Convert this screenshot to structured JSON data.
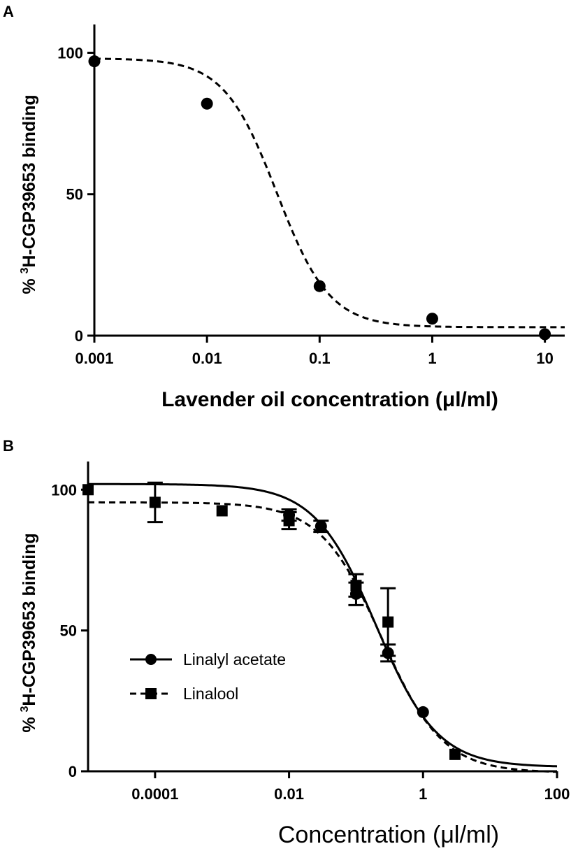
{
  "chart_data": [
    {
      "panel_letter": "A",
      "type": "scatter",
      "xscale": "log",
      "xlim": [
        0.001,
        15
      ],
      "ylim": [
        0,
        110
      ],
      "xticks": [
        0.001,
        0.01,
        0.1,
        1,
        10
      ],
      "xtick_labels": [
        "0.001",
        "0.01",
        "0.1",
        "1",
        "10"
      ],
      "yticks": [
        0,
        50,
        100
      ],
      "ytick_labels": [
        "0",
        "50",
        "100"
      ],
      "ylabel_prefix": "% ",
      "ylabel_sup": "3",
      "ylabel_main": "H-CGP39653 binding",
      "xlabel": "Lavender oil concentration (μl/ml)",
      "grid": false,
      "series": [
        {
          "marker": "circle",
          "line": "dashed",
          "x": [
            0.001,
            0.01,
            0.1,
            1,
            10
          ],
          "y": [
            97,
            82,
            17.5,
            6,
            0.5
          ],
          "fit": {
            "top": 98,
            "bottom": 3,
            "log_ec50": -1.38,
            "hill": 1.85
          }
        }
      ]
    },
    {
      "panel_letter": "B",
      "type": "scatter",
      "xscale": "log",
      "xlim": [
        1e-05,
        100
      ],
      "ylim": [
        0,
        110
      ],
      "xticks": [
        0.0001,
        0.01,
        1,
        100
      ],
      "xtick_labels": [
        "0.0001",
        "0.01",
        "1",
        "100"
      ],
      "yticks": [
        0,
        50,
        100
      ],
      "ytick_labels": [
        "0",
        "50",
        "100"
      ],
      "ylabel_prefix": "% ",
      "ylabel_sup": "3",
      "ylabel_main": "H-CGP39653 binding",
      "xlabel": "Concentration (μl/ml)",
      "grid": false,
      "legend_position": "lower-left",
      "series": [
        {
          "name": "Linalyl acetate",
          "marker": "circle",
          "line": "solid",
          "x": [
            0.01,
            0.03,
            0.1,
            0.3,
            1
          ],
          "y": [
            91,
            87,
            63,
            42,
            21
          ],
          "err": [
            2,
            2,
            4,
            3,
            1
          ],
          "fit": {
            "top": 102,
            "bottom": 1.5,
            "log_ec50": -0.7,
            "hill": 0.95
          }
        },
        {
          "name": "Linalool",
          "marker": "square",
          "line": "dashed",
          "x": [
            1e-05,
            0.0001,
            0.001,
            0.01,
            0.1,
            0.3,
            3
          ],
          "y": [
            100,
            95.5,
            92.5,
            89,
            66,
            53,
            6
          ],
          "err": [
            1,
            7,
            1,
            3,
            4,
            12,
            1
          ],
          "fit": {
            "top": 95.5,
            "bottom": -0.5,
            "log_ec50": -0.62,
            "hill": 0.95
          }
        }
      ]
    }
  ]
}
